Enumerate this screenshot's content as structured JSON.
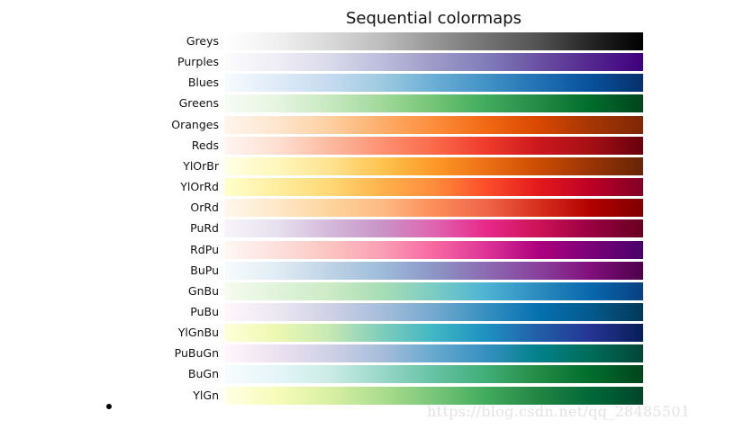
{
  "chart_data": {
    "type": "heatmap",
    "title": "Sequential colormaps",
    "colormaps": [
      {
        "name": "Greys",
        "colors": [
          "#ffffff",
          "#f0f0f0",
          "#d9d9d9",
          "#bdbdbd",
          "#969696",
          "#737373",
          "#525252",
          "#252525",
          "#000000"
        ]
      },
      {
        "name": "Purples",
        "colors": [
          "#fcfbfd",
          "#efedf5",
          "#dadaeb",
          "#bcbddc",
          "#9e9ac8",
          "#807dba",
          "#6a51a3",
          "#54278f",
          "#3f007d"
        ]
      },
      {
        "name": "Blues",
        "colors": [
          "#f7fbff",
          "#deebf7",
          "#c6dbef",
          "#9ecae1",
          "#6baed6",
          "#4292c6",
          "#2171b5",
          "#08519c",
          "#08306b"
        ]
      },
      {
        "name": "Greens",
        "colors": [
          "#f7fcf5",
          "#e5f5e0",
          "#c7e9c0",
          "#a1d99b",
          "#74c476",
          "#41ab5d",
          "#238b45",
          "#006d2c",
          "#00441b"
        ]
      },
      {
        "name": "Oranges",
        "colors": [
          "#fff5eb",
          "#fee6ce",
          "#fdd0a2",
          "#fdae6b",
          "#fd8d3c",
          "#f16913",
          "#d94801",
          "#a63603",
          "#7f2704"
        ]
      },
      {
        "name": "Reds",
        "colors": [
          "#fff5f0",
          "#fee0d2",
          "#fcbba1",
          "#fc9272",
          "#fb6a4a",
          "#ef3b2c",
          "#cb181d",
          "#a50f15",
          "#67000d"
        ]
      },
      {
        "name": "YlOrBr",
        "colors": [
          "#ffffe5",
          "#fff7bc",
          "#fee391",
          "#fec44f",
          "#fe9929",
          "#ec7014",
          "#cc4c02",
          "#993404",
          "#662506"
        ]
      },
      {
        "name": "YlOrRd",
        "colors": [
          "#ffffcc",
          "#ffeda0",
          "#fed976",
          "#feb24c",
          "#fd8d3c",
          "#fc4e2a",
          "#e31a1c",
          "#bd0026",
          "#800026"
        ]
      },
      {
        "name": "OrRd",
        "colors": [
          "#fff7ec",
          "#fee8c8",
          "#fdd49e",
          "#fdbb84",
          "#fc8d59",
          "#ef6548",
          "#d7301f",
          "#b30000",
          "#7f0000"
        ]
      },
      {
        "name": "PuRd",
        "colors": [
          "#f7f4f9",
          "#e7e1ef",
          "#d4b9da",
          "#c994c7",
          "#df65b0",
          "#e7298a",
          "#ce1256",
          "#980043",
          "#67001f"
        ]
      },
      {
        "name": "RdPu",
        "colors": [
          "#fff7f3",
          "#fde0dd",
          "#fcc5c0",
          "#fa9fb5",
          "#f768a1",
          "#dd3497",
          "#ae017e",
          "#7a0177",
          "#49006a"
        ]
      },
      {
        "name": "BuPu",
        "colors": [
          "#f7fcfd",
          "#e0ecf4",
          "#bfd3e6",
          "#9ebcda",
          "#8c96c6",
          "#8c6bb1",
          "#88419d",
          "#810f7c",
          "#4d004b"
        ]
      },
      {
        "name": "GnBu",
        "colors": [
          "#f7fcf0",
          "#e0f3db",
          "#ccebc5",
          "#a8ddb5",
          "#7bccc4",
          "#4eb3d3",
          "#2b8cbe",
          "#0868ac",
          "#084081"
        ]
      },
      {
        "name": "PuBu",
        "colors": [
          "#fff7fb",
          "#ece7f2",
          "#d0d1e6",
          "#a6bddb",
          "#74a9cf",
          "#3690c0",
          "#0570b0",
          "#045a8d",
          "#023858"
        ]
      },
      {
        "name": "YlGnBu",
        "colors": [
          "#ffffd9",
          "#edf8b1",
          "#c7e9b4",
          "#7fcdbb",
          "#41b6c4",
          "#1d91c0",
          "#225ea8",
          "#253494",
          "#081d58"
        ]
      },
      {
        "name": "PuBuGn",
        "colors": [
          "#fff7fb",
          "#ece2f0",
          "#d0d1e6",
          "#a6bddb",
          "#67a9cf",
          "#3690c0",
          "#02818a",
          "#016c59",
          "#014636"
        ]
      },
      {
        "name": "BuGn",
        "colors": [
          "#f7fcfd",
          "#e5f5f9",
          "#ccece6",
          "#99d8c9",
          "#66c2a4",
          "#41ae76",
          "#238b45",
          "#006d2c",
          "#00441b"
        ]
      },
      {
        "name": "YlGn",
        "colors": [
          "#ffffe5",
          "#f7fcb9",
          "#d9f0a3",
          "#addd8e",
          "#78c679",
          "#41ab5d",
          "#238443",
          "#006837",
          "#004529"
        ]
      }
    ]
  },
  "watermark": "https://blog.csdn.net/qq_28485501"
}
